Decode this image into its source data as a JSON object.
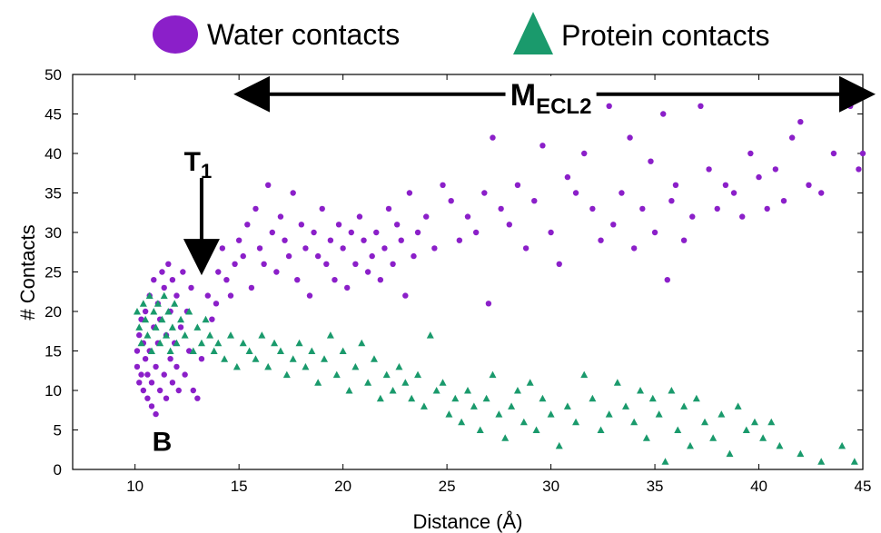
{
  "chart_data": {
    "type": "scatter",
    "title": "",
    "xlabel": "Distance (Å)",
    "ylabel": "# Contacts",
    "xlim": [
      7,
      45
    ],
    "ylim": [
      0,
      50
    ],
    "xticks": [
      10,
      15,
      20,
      25,
      30,
      35,
      40,
      45
    ],
    "yticks": [
      0,
      5,
      10,
      15,
      20,
      25,
      30,
      35,
      40,
      45,
      50
    ],
    "grid": false,
    "legend": {
      "placement": "top",
      "entries": [
        {
          "label": "Water contacts",
          "marker": "circle",
          "color": "#8b1fc9"
        },
        {
          "label": "Protein contacts",
          "marker": "triangle",
          "color": "#1a9a6c"
        }
      ]
    },
    "series": [
      {
        "name": "Water contacts",
        "marker": "circle",
        "color": "#8b1fc9",
        "points": [
          [
            10.1,
            13
          ],
          [
            10.1,
            15
          ],
          [
            10.2,
            11
          ],
          [
            10.2,
            17
          ],
          [
            10.3,
            12
          ],
          [
            10.3,
            19
          ],
          [
            10.4,
            10
          ],
          [
            10.4,
            16
          ],
          [
            10.5,
            14
          ],
          [
            10.5,
            20
          ],
          [
            10.6,
            9
          ],
          [
            10.6,
            12
          ],
          [
            10.7,
            15
          ],
          [
            10.7,
            22
          ],
          [
            10.8,
            8
          ],
          [
            10.8,
            11
          ],
          [
            10.9,
            18
          ],
          [
            10.9,
            24
          ],
          [
            11.0,
            7
          ],
          [
            11.0,
            13
          ],
          [
            11.1,
            16
          ],
          [
            11.1,
            21
          ],
          [
            11.2,
            10
          ],
          [
            11.2,
            19
          ],
          [
            11.3,
            25
          ],
          [
            11.4,
            12
          ],
          [
            11.4,
            23
          ],
          [
            11.5,
            9
          ],
          [
            11.5,
            17
          ],
          [
            11.6,
            26
          ],
          [
            11.7,
            14
          ],
          [
            11.7,
            20
          ],
          [
            11.8,
            11
          ],
          [
            11.8,
            24
          ],
          [
            11.9,
            16
          ],
          [
            12.0,
            13
          ],
          [
            12.0,
            22
          ],
          [
            12.1,
            10
          ],
          [
            12.2,
            18
          ],
          [
            12.3,
            25
          ],
          [
            12.4,
            12
          ],
          [
            12.5,
            20
          ],
          [
            12.6,
            15
          ],
          [
            12.7,
            23
          ],
          [
            12.8,
            10
          ],
          [
            12.9,
            27
          ],
          [
            13.0,
            9
          ],
          [
            13.2,
            14
          ],
          [
            13.3,
            26
          ],
          [
            13.5,
            22
          ],
          [
            13.7,
            19
          ],
          [
            13.9,
            21
          ],
          [
            14.0,
            25
          ],
          [
            14.2,
            28
          ],
          [
            14.4,
            24
          ],
          [
            14.6,
            22
          ],
          [
            14.8,
            26
          ],
          [
            15.0,
            29
          ],
          [
            15.2,
            27
          ],
          [
            15.4,
            31
          ],
          [
            15.6,
            23
          ],
          [
            15.8,
            33
          ],
          [
            16.0,
            28
          ],
          [
            16.2,
            26
          ],
          [
            16.4,
            36
          ],
          [
            16.6,
            30
          ],
          [
            16.8,
            25
          ],
          [
            17.0,
            32
          ],
          [
            17.2,
            29
          ],
          [
            17.4,
            27
          ],
          [
            17.6,
            35
          ],
          [
            17.8,
            24
          ],
          [
            18.0,
            31
          ],
          [
            18.2,
            28
          ],
          [
            18.4,
            22
          ],
          [
            18.6,
            30
          ],
          [
            18.8,
            27
          ],
          [
            19.0,
            33
          ],
          [
            19.2,
            26
          ],
          [
            19.4,
            29
          ],
          [
            19.6,
            24
          ],
          [
            19.8,
            31
          ],
          [
            20.0,
            28
          ],
          [
            20.2,
            23
          ],
          [
            20.4,
            30
          ],
          [
            20.6,
            26
          ],
          [
            20.8,
            32
          ],
          [
            21.0,
            29
          ],
          [
            21.2,
            25
          ],
          [
            21.4,
            27
          ],
          [
            21.6,
            30
          ],
          [
            21.8,
            24
          ],
          [
            22.0,
            28
          ],
          [
            22.2,
            33
          ],
          [
            22.4,
            26
          ],
          [
            22.6,
            31
          ],
          [
            22.8,
            29
          ],
          [
            23.0,
            22
          ],
          [
            23.2,
            35
          ],
          [
            23.4,
            27
          ],
          [
            23.6,
            30
          ],
          [
            24.0,
            32
          ],
          [
            24.4,
            28
          ],
          [
            24.8,
            36
          ],
          [
            25.2,
            34
          ],
          [
            25.6,
            29
          ],
          [
            26.0,
            32
          ],
          [
            26.4,
            30
          ],
          [
            26.8,
            35
          ],
          [
            27.0,
            21
          ],
          [
            27.2,
            42
          ],
          [
            27.6,
            33
          ],
          [
            28.0,
            31
          ],
          [
            28.4,
            36
          ],
          [
            28.8,
            28
          ],
          [
            29.2,
            34
          ],
          [
            29.6,
            41
          ],
          [
            30.0,
            30
          ],
          [
            30.4,
            26
          ],
          [
            30.8,
            37
          ],
          [
            31.2,
            35
          ],
          [
            31.6,
            40
          ],
          [
            32.0,
            33
          ],
          [
            32.4,
            29
          ],
          [
            32.8,
            46
          ],
          [
            33.0,
            31
          ],
          [
            33.4,
            35
          ],
          [
            33.8,
            42
          ],
          [
            34.0,
            28
          ],
          [
            34.4,
            33
          ],
          [
            34.8,
            39
          ],
          [
            35.0,
            30
          ],
          [
            35.4,
            45
          ],
          [
            35.6,
            24
          ],
          [
            35.8,
            34
          ],
          [
            36.0,
            36
          ],
          [
            36.4,
            29
          ],
          [
            36.8,
            32
          ],
          [
            37.2,
            46
          ],
          [
            37.6,
            38
          ],
          [
            38.0,
            33
          ],
          [
            38.4,
            36
          ],
          [
            38.8,
            35
          ],
          [
            39.2,
            32
          ],
          [
            39.6,
            40
          ],
          [
            40.0,
            37
          ],
          [
            40.4,
            33
          ],
          [
            40.8,
            38
          ],
          [
            41.2,
            34
          ],
          [
            41.6,
            42
          ],
          [
            42.0,
            44
          ],
          [
            42.4,
            36
          ],
          [
            43.0,
            35
          ],
          [
            43.6,
            40
          ],
          [
            44.0,
            47
          ],
          [
            44.4,
            46
          ],
          [
            44.8,
            38
          ],
          [
            45.0,
            40
          ]
        ]
      },
      {
        "name": "Protein contacts",
        "marker": "triangle",
        "color": "#1a9a6c",
        "points": [
          [
            10.1,
            20
          ],
          [
            10.2,
            18
          ],
          [
            10.3,
            16
          ],
          [
            10.4,
            21
          ],
          [
            10.5,
            19
          ],
          [
            10.6,
            17
          ],
          [
            10.7,
            22
          ],
          [
            10.8,
            15
          ],
          [
            10.9,
            20
          ],
          [
            11.0,
            18
          ],
          [
            11.1,
            21
          ],
          [
            11.2,
            16
          ],
          [
            11.3,
            19
          ],
          [
            11.4,
            22
          ],
          [
            11.5,
            17
          ],
          [
            11.6,
            20
          ],
          [
            11.7,
            15
          ],
          [
            11.8,
            18
          ],
          [
            11.9,
            21
          ],
          [
            12.0,
            16
          ],
          [
            12.2,
            19
          ],
          [
            12.4,
            17
          ],
          [
            12.6,
            20
          ],
          [
            12.8,
            15
          ],
          [
            13.0,
            18
          ],
          [
            13.2,
            16
          ],
          [
            13.4,
            19
          ],
          [
            13.6,
            17
          ],
          [
            13.8,
            15
          ],
          [
            14.0,
            16
          ],
          [
            14.3,
            14
          ],
          [
            14.6,
            17
          ],
          [
            14.9,
            13
          ],
          [
            15.2,
            16
          ],
          [
            15.5,
            15
          ],
          [
            15.8,
            14
          ],
          [
            16.1,
            17
          ],
          [
            16.4,
            13
          ],
          [
            16.7,
            16
          ],
          [
            17.0,
            15
          ],
          [
            17.3,
            12
          ],
          [
            17.6,
            14
          ],
          [
            17.9,
            16
          ],
          [
            18.2,
            13
          ],
          [
            18.5,
            15
          ],
          [
            18.8,
            11
          ],
          [
            19.1,
            14
          ],
          [
            19.4,
            17
          ],
          [
            19.7,
            12
          ],
          [
            20.0,
            15
          ],
          [
            20.3,
            10
          ],
          [
            20.6,
            13
          ],
          [
            20.9,
            16
          ],
          [
            21.2,
            11
          ],
          [
            21.5,
            14
          ],
          [
            21.8,
            9
          ],
          [
            22.1,
            12
          ],
          [
            22.4,
            10
          ],
          [
            22.7,
            13
          ],
          [
            23.0,
            11
          ],
          [
            23.3,
            9
          ],
          [
            23.6,
            12
          ],
          [
            23.9,
            8
          ],
          [
            24.2,
            17
          ],
          [
            24.5,
            10
          ],
          [
            24.8,
            11
          ],
          [
            25.1,
            7
          ],
          [
            25.4,
            9
          ],
          [
            25.7,
            6
          ],
          [
            26.0,
            10
          ],
          [
            26.3,
            8
          ],
          [
            26.6,
            5
          ],
          [
            26.9,
            9
          ],
          [
            27.2,
            12
          ],
          [
            27.5,
            7
          ],
          [
            27.8,
            4
          ],
          [
            28.1,
            8
          ],
          [
            28.4,
            10
          ],
          [
            28.7,
            6
          ],
          [
            29.0,
            11
          ],
          [
            29.3,
            5
          ],
          [
            29.6,
            9
          ],
          [
            30.0,
            7
          ],
          [
            30.4,
            3
          ],
          [
            30.8,
            8
          ],
          [
            31.2,
            6
          ],
          [
            31.6,
            12
          ],
          [
            32.0,
            9
          ],
          [
            32.4,
            5
          ],
          [
            32.8,
            7
          ],
          [
            33.2,
            11
          ],
          [
            33.6,
            8
          ],
          [
            34.0,
            6
          ],
          [
            34.3,
            10
          ],
          [
            34.6,
            4
          ],
          [
            34.9,
            9
          ],
          [
            35.2,
            7
          ],
          [
            35.5,
            1
          ],
          [
            35.8,
            10
          ],
          [
            36.1,
            5
          ],
          [
            36.4,
            8
          ],
          [
            36.7,
            3
          ],
          [
            37.0,
            9
          ],
          [
            37.4,
            6
          ],
          [
            37.8,
            4
          ],
          [
            38.2,
            7
          ],
          [
            38.6,
            2
          ],
          [
            39.0,
            8
          ],
          [
            39.4,
            5
          ],
          [
            39.8,
            6
          ],
          [
            40.2,
            4
          ],
          [
            40.6,
            6
          ],
          [
            41.0,
            3
          ],
          [
            42.0,
            2
          ],
          [
            43.0,
            1
          ],
          [
            44.0,
            3
          ],
          [
            44.6,
            1
          ]
        ]
      }
    ],
    "annotations": [
      {
        "text": "M",
        "subscript": "ECL2",
        "type": "double-arrow",
        "x_range": [
          15,
          45
        ],
        "y": 47.5
      },
      {
        "text": "T",
        "subscript": "1",
        "type": "down-arrow",
        "x": 13.2,
        "y_from": 38.5,
        "y_to": 25.5
      },
      {
        "text": "B",
        "x": 11.3,
        "y": 3.5
      }
    ]
  }
}
